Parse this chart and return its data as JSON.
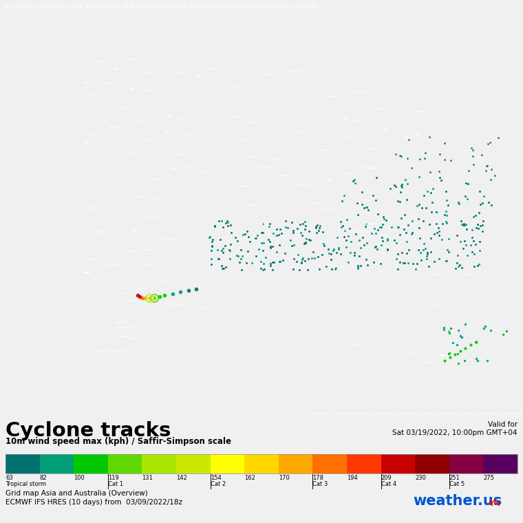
{
  "title": "Cyclone tracks",
  "subtitle": "10m wind speed max (kph) / Saffir-Simpson scale",
  "valid_for_line1": "Valid for",
  "valid_for_line2": "Sat 03/19/2022, 10:00pm GMT+04",
  "top_notice": "This service is based on data and products of the European Centre for Medium-range Weather Forecasts (ECMWF)",
  "map_credit": "Map data © OpenStreetMap contributors, rendering GIScience Research Group @ Heidelberg University",
  "grid_map_text": "Grid map Asia and Australia (Overview)",
  "ecmwf_text": "ECMWF IFS HRES (10 days) from  03/09/2022/18z",
  "colorbar_values": [
    63,
    82,
    100,
    119,
    131,
    142,
    154,
    162,
    170,
    178,
    194,
    209,
    230,
    251,
    275
  ],
  "colorbar_colors": [
    "#007070",
    "#009e78",
    "#00c800",
    "#60d800",
    "#a8e800",
    "#cce800",
    "#ffff00",
    "#ffd800",
    "#ffa800",
    "#ff7000",
    "#ff3800",
    "#c80000",
    "#900000",
    "#840040",
    "#580060"
  ],
  "cat_labels": [
    {
      "val": 63,
      "label": "Tropical storm"
    },
    {
      "val": 119,
      "label": "Cat 1"
    },
    {
      "val": 154,
      "label": "Cat 2"
    },
    {
      "val": 178,
      "label": "Cat 3"
    },
    {
      "val": 209,
      "label": "Cat 4"
    },
    {
      "val": 251,
      "label": "Cat 5"
    }
  ],
  "map_bg_color": "#3c3c3c",
  "land_color": "#606060",
  "ocean_color": "#2e2e2e",
  "panel_bg_color": "#f0f0f0",
  "top_bar_color": "#555555",
  "notice_text_color": "#ffffff",
  "weather_us_text": "weather.us",
  "weather_us_color": "#0055cc",
  "map_extent": [
    -20,
    180,
    -55,
    75
  ],
  "fig_width": 7.6,
  "fig_height": 7.6,
  "dpi": 100
}
